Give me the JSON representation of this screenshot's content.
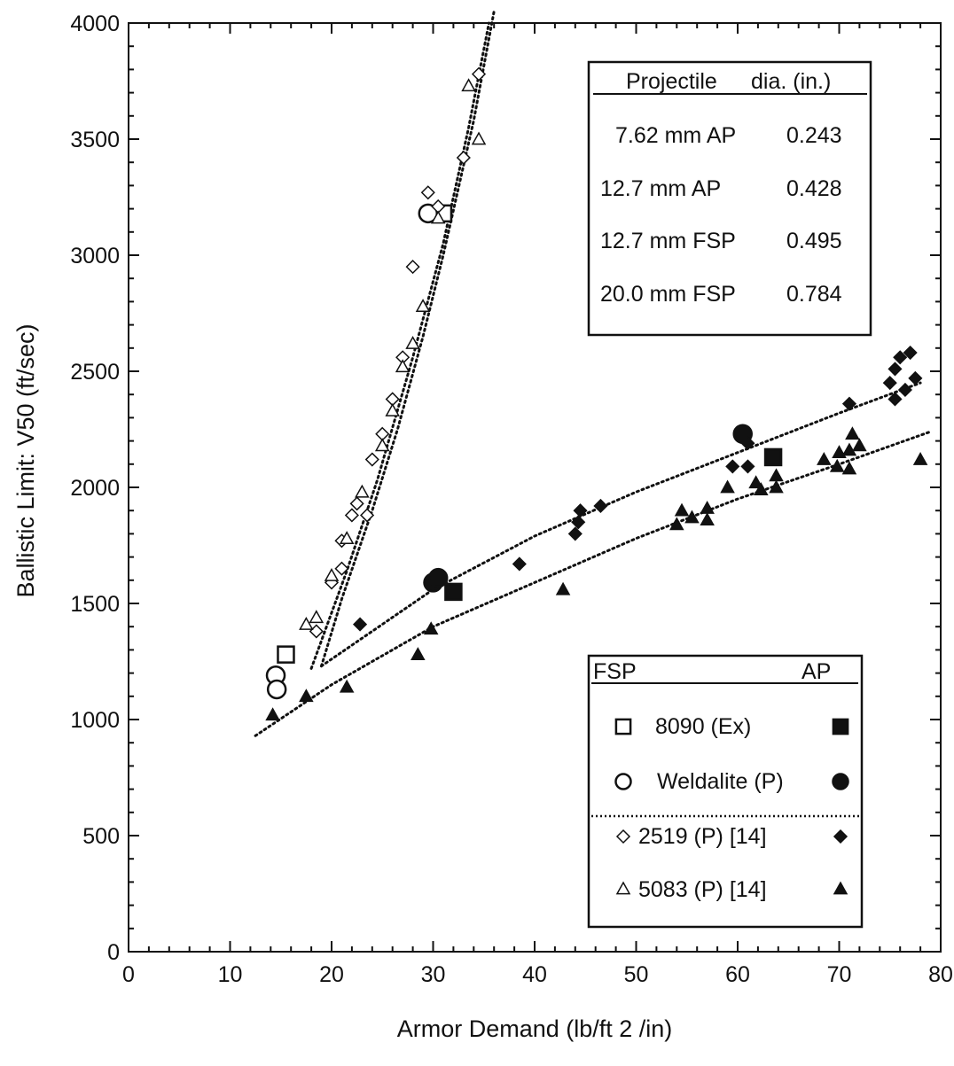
{
  "chart_data": {
    "type": "scatter",
    "xlabel": "Armor Demand (lb/ft 2 /in)",
    "ylabel": "Ballistic Limit: V50 (ft/sec)",
    "xlim": [
      0,
      80
    ],
    "ylim": [
      0,
      4000
    ],
    "x_ticks": [
      "0",
      "10",
      "20",
      "30",
      "40",
      "50",
      "60",
      "70",
      "80"
    ],
    "y_ticks": [
      "0",
      "500",
      "1000",
      "1500",
      "2000",
      "2500",
      "3000",
      "3500",
      "4000"
    ],
    "grid": false,
    "projectile_table": {
      "headers": [
        "Projectile",
        "dia. (in.)"
      ],
      "rows": [
        [
          "7.62 mm AP",
          "0.243"
        ],
        [
          "12.7 mm AP",
          "0.428"
        ],
        [
          "12.7 mm FSP",
          "0.495"
        ],
        [
          "20.0 mm FSP",
          "0.784"
        ]
      ]
    },
    "legend": {
      "headers": [
        "FSP",
        "AP"
      ],
      "entries": [
        "8090 (Ex)",
        "Weldalite (P)",
        "2519 (P) [14]",
        "5083 (P) [14]"
      ]
    },
    "series": [
      {
        "name": "8090 (Ex)",
        "projectile": "FSP",
        "marker": "square-open",
        "points": [
          [
            15.5,
            1280
          ],
          [
            31,
            3180
          ]
        ]
      },
      {
        "name": "8090 (Ex)",
        "projectile": "AP",
        "marker": "square-filled",
        "points": [
          [
            32,
            1550
          ],
          [
            63.5,
            2130
          ]
        ]
      },
      {
        "name": "Weldalite (P)",
        "projectile": "FSP",
        "marker": "circle-open",
        "points": [
          [
            14.5,
            1190
          ],
          [
            14.6,
            1130
          ],
          [
            29.5,
            3180
          ]
        ]
      },
      {
        "name": "Weldalite (P)",
        "projectile": "AP",
        "marker": "circle-filled",
        "points": [
          [
            30,
            1590
          ],
          [
            30.5,
            1610
          ],
          [
            60.5,
            2230
          ]
        ]
      },
      {
        "name": "2519 (P) [14]",
        "projectile": "FSP",
        "marker": "diamond-open",
        "points": [
          [
            18.5,
            1380
          ],
          [
            20,
            1590
          ],
          [
            21,
            1650
          ],
          [
            21,
            1770
          ],
          [
            22,
            1880
          ],
          [
            22.5,
            1930
          ],
          [
            23.5,
            1880
          ],
          [
            24,
            2120
          ],
          [
            25,
            2230
          ],
          [
            26,
            2380
          ],
          [
            27,
            2560
          ],
          [
            28,
            2950
          ],
          [
            29.5,
            3270
          ],
          [
            30.5,
            3210
          ],
          [
            33,
            3420
          ],
          [
            34.5,
            3780
          ]
        ]
      },
      {
        "name": "2519 (P) [14]",
        "projectile": "AP",
        "marker": "diamond-filled",
        "points": [
          [
            22.8,
            1410
          ],
          [
            38.5,
            1670
          ],
          [
            44,
            1800
          ],
          [
            44.3,
            1850
          ],
          [
            44.5,
            1900
          ],
          [
            46.5,
            1920
          ],
          [
            59.5,
            2090
          ],
          [
            61,
            2090
          ],
          [
            61,
            2190
          ],
          [
            71,
            2360
          ],
          [
            75,
            2450
          ],
          [
            75.5,
            2510
          ],
          [
            76,
            2560
          ],
          [
            76.5,
            2420
          ],
          [
            77,
            2580
          ],
          [
            77.5,
            2470
          ],
          [
            75.5,
            2380
          ]
        ]
      },
      {
        "name": "5083 (P) [14]",
        "projectile": "FSP",
        "marker": "triangle-open",
        "points": [
          [
            17.5,
            1410
          ],
          [
            18.5,
            1440
          ],
          [
            20,
            1620
          ],
          [
            21.5,
            1780
          ],
          [
            23,
            1980
          ],
          [
            25,
            2180
          ],
          [
            26,
            2330
          ],
          [
            27,
            2520
          ],
          [
            28,
            2620
          ],
          [
            29,
            2780
          ],
          [
            30.5,
            3160
          ],
          [
            33.5,
            3730
          ],
          [
            34.5,
            3500
          ]
        ]
      },
      {
        "name": "5083 (P) [14]",
        "projectile": "AP",
        "marker": "triangle-filled",
        "points": [
          [
            14.2,
            1020
          ],
          [
            17.5,
            1100
          ],
          [
            21.5,
            1140
          ],
          [
            28.5,
            1280
          ],
          [
            29.8,
            1390
          ],
          [
            42.8,
            1560
          ],
          [
            54,
            1840
          ],
          [
            54.5,
            1900
          ],
          [
            55.5,
            1870
          ],
          [
            57,
            1860
          ],
          [
            57,
            1910
          ],
          [
            59,
            2000
          ],
          [
            61.8,
            2020
          ],
          [
            62.3,
            1990
          ],
          [
            63.8,
            2000
          ],
          [
            63.8,
            2050
          ],
          [
            68.5,
            2120
          ],
          [
            69.8,
            2090
          ],
          [
            70,
            2150
          ],
          [
            71,
            2080
          ],
          [
            71,
            2160
          ],
          [
            71.3,
            2230
          ],
          [
            72,
            2180
          ],
          [
            78,
            2120
          ]
        ]
      }
    ],
    "trend_lines": [
      {
        "points": [
          [
            18,
            1220
          ],
          [
            21.5,
            1640
          ],
          [
            24.5,
            2030
          ],
          [
            28,
            2560
          ],
          [
            31,
            3050
          ],
          [
            33.5,
            3550
          ],
          [
            35.5,
            4000
          ]
        ]
      },
      {
        "points": [
          [
            19,
            1230
          ],
          [
            21,
            1520
          ],
          [
            24,
            1900
          ],
          [
            26.5,
            2250
          ],
          [
            29,
            2650
          ],
          [
            31,
            3000
          ],
          [
            34,
            3580
          ],
          [
            36,
            4050
          ]
        ]
      },
      {
        "points": [
          [
            19,
            1230
          ],
          [
            30,
            1560
          ],
          [
            40,
            1790
          ],
          [
            50,
            1980
          ],
          [
            60,
            2150
          ],
          [
            70,
            2320
          ],
          [
            78,
            2450
          ]
        ]
      },
      {
        "points": [
          [
            12.5,
            930
          ],
          [
            20,
            1150
          ],
          [
            30,
            1400
          ],
          [
            40,
            1590
          ],
          [
            50,
            1780
          ],
          [
            60,
            1950
          ],
          [
            70,
            2100
          ],
          [
            79,
            2240
          ]
        ]
      }
    ]
  }
}
